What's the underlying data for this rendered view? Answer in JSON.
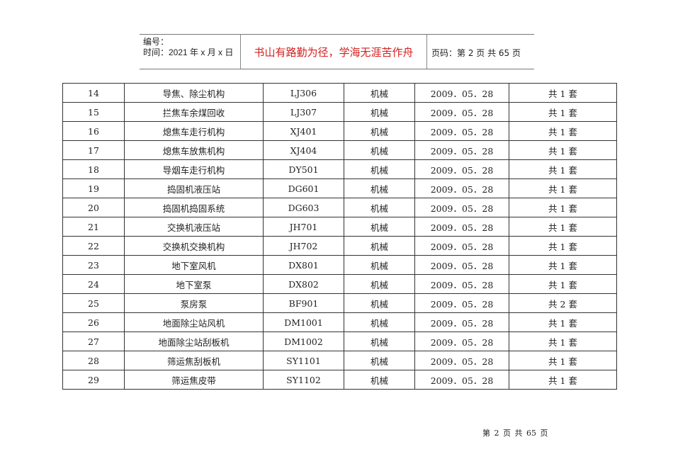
{
  "header": {
    "code_label": "编号：",
    "time_label": "时间：2021 年 x 月 x 日",
    "motto": "书山有路勤为径，学海无涯苦作舟",
    "page_info": "页码：第 2 页  共 65 页"
  },
  "table": {
    "rows": [
      [
        "14",
        "导焦、除尘机构",
        "LJ306",
        "机械",
        "2009．05．28",
        "共 1 套"
      ],
      [
        "15",
        "拦焦车余煤回收",
        "LJ307",
        "机械",
        "2009．05．28",
        "共 1 套"
      ],
      [
        "16",
        "熄焦车走行机构",
        "XJ401",
        "机械",
        "2009．05．28",
        "共 1 套"
      ],
      [
        "17",
        "熄焦车放焦机构",
        "XJ404",
        "机械",
        "2009．05．28",
        "共 1 套"
      ],
      [
        "18",
        "导烟车走行机构",
        "DY501",
        "机械",
        "2009．05．28",
        "共 1 套"
      ],
      [
        "19",
        "捣固机液压站",
        "DG601",
        "机械",
        "2009．05．28",
        "共 1 套"
      ],
      [
        "20",
        "捣固机捣固系统",
        "DG603",
        "机械",
        "2009．05．28",
        "共 1 套"
      ],
      [
        "21",
        "交换机液压站",
        "JH701",
        "机械",
        "2009．05．28",
        "共 1 套"
      ],
      [
        "22",
        "交换机交换机构",
        "JH702",
        "机械",
        "2009．05．28",
        "共 1 套"
      ],
      [
        "23",
        "地下室风机",
        "DX801",
        "机械",
        "2009．05．28",
        "共 1 套"
      ],
      [
        "24",
        "地下室泵",
        "DX802",
        "机械",
        "2009．05．28",
        "共 1 套"
      ],
      [
        "25",
        "泵房泵",
        "BF901",
        "机械",
        "2009．05．28",
        "共 2 套"
      ],
      [
        "26",
        "地面除尘站风机",
        "DM1001",
        "机械",
        "2009．05．28",
        "共 1 套"
      ],
      [
        "27",
        "地面除尘站刮板机",
        "DM1002",
        "机械",
        "2009．05．28",
        "共 1 套"
      ],
      [
        "28",
        "筛运焦刮板机",
        "SY1101",
        "机械",
        "2009．05．28",
        "共 1 套"
      ],
      [
        "29",
        "筛运焦皮带",
        "SY1102",
        "机械",
        "2009．05．28",
        "共 1 套"
      ]
    ]
  },
  "footer": {
    "page": "第 2 页 共 65 页"
  },
  "colors": {
    "motto": "#d42020"
  }
}
